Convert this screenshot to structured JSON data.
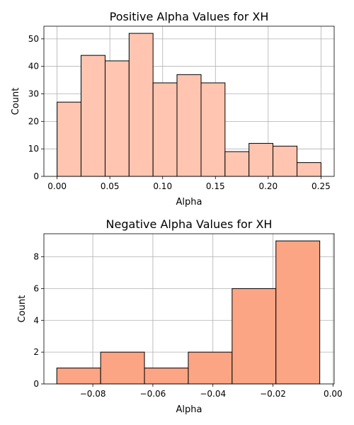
{
  "chart_data": [
    {
      "type": "bar",
      "title": "Positive Alpha Values for XH",
      "xlabel": "Alpha",
      "ylabel": "Count",
      "color": "#ffc5b0",
      "edgecolor": "#000000",
      "grid": true,
      "xlim": [
        -0.0125,
        0.2625
      ],
      "ylim": [
        0,
        54.6
      ],
      "bin_edges": [
        0.0,
        0.0227,
        0.0455,
        0.0682,
        0.0909,
        0.1136,
        0.1364,
        0.1591,
        0.1818,
        0.2045,
        0.2273,
        0.25
      ],
      "values": [
        27,
        44,
        42,
        52,
        34,
        37,
        34,
        9,
        12,
        11,
        5
      ],
      "xticks": [
        0.0,
        0.05,
        0.1,
        0.15,
        0.2,
        0.25
      ],
      "xtick_labels": [
        "0.00",
        "0.05",
        "0.10",
        "0.15",
        "0.20",
        "0.25"
      ],
      "yticks": [
        0,
        10,
        20,
        30,
        40,
        50
      ],
      "ytick_labels": [
        "0",
        "10",
        "20",
        "30",
        "40",
        "50"
      ]
    },
    {
      "type": "bar",
      "title": "Negative Alpha Values for XH",
      "xlabel": "Alpha",
      "ylabel": "Count",
      "color": "#fca585",
      "edgecolor": "#000000",
      "grid": true,
      "xlim": [
        -0.0963,
        0.0004
      ],
      "ylim": [
        0,
        9.45
      ],
      "bin_edges": [
        -0.092,
        -0.0774,
        -0.0628,
        -0.0482,
        -0.0336,
        -0.019,
        -0.0044
      ],
      "values": [
        1,
        2,
        1,
        2,
        6,
        9
      ],
      "xticks": [
        -0.08,
        -0.06,
        -0.04,
        -0.02,
        0.0
      ],
      "xtick_labels": [
        "−0.08",
        "−0.06",
        "−0.04",
        "−0.02",
        "0.00"
      ],
      "yticks": [
        0,
        2,
        4,
        6,
        8
      ],
      "ytick_labels": [
        "0",
        "2",
        "4",
        "6",
        "8"
      ]
    }
  ]
}
